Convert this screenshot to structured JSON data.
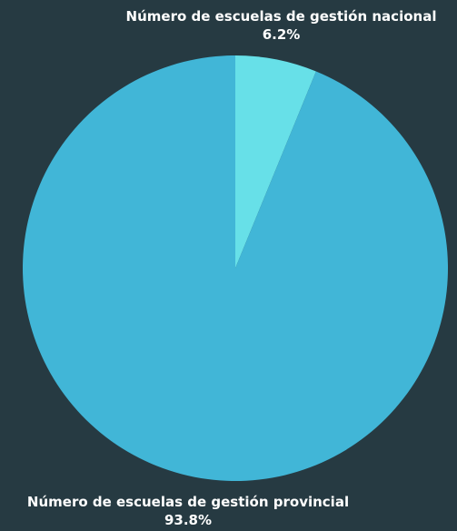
{
  "chart_data": {
    "type": "pie",
    "slices": [
      {
        "name": "Número de escuelas de gestión nacional",
        "value": 6.2,
        "value_label": "6.2%",
        "color": "#67e0e8"
      },
      {
        "name": "Número de escuelas de gestión provincial",
        "value": 93.8,
        "value_label": "93.8%",
        "color": "#41b6d7"
      }
    ]
  }
}
